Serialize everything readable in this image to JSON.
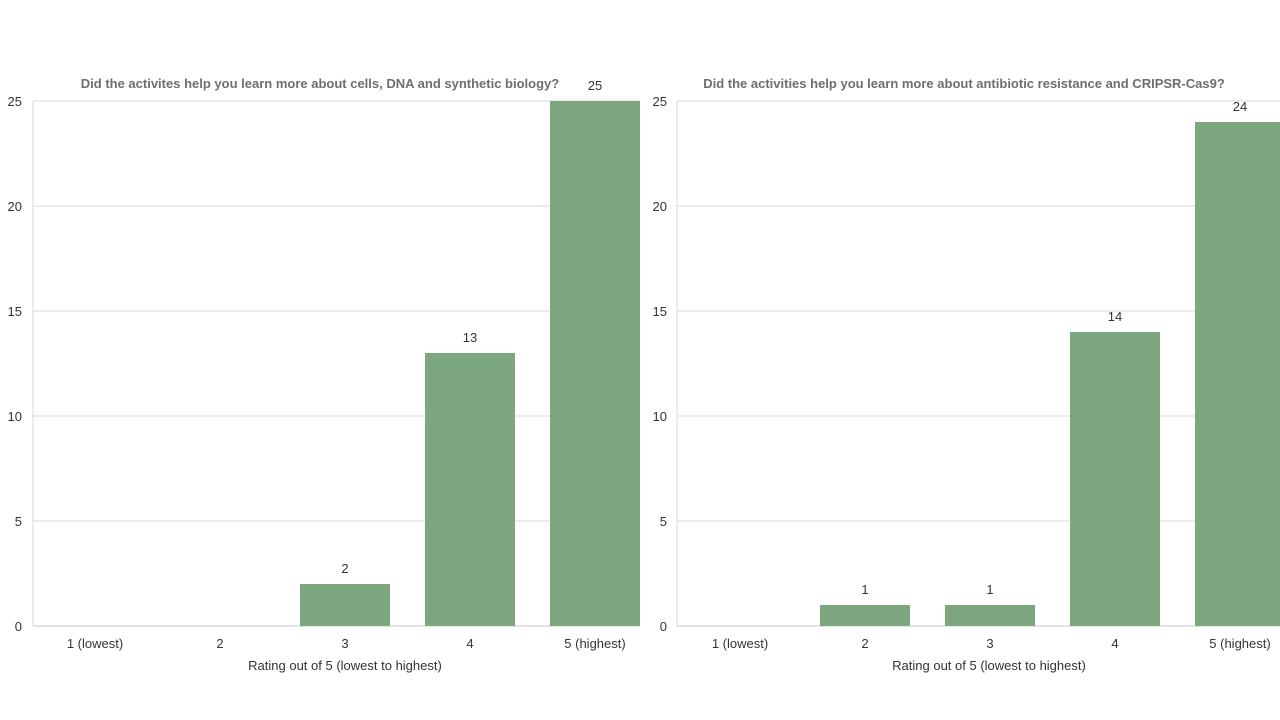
{
  "colors": {
    "bar": "#7da77f"
  },
  "chart_data": [
    {
      "type": "bar",
      "title": "Did the activites help you learn more about cells, DNA and synthetic biology?",
      "xlabel": "Rating out of 5 (lowest to highest)",
      "ylabel": "",
      "ylim": [
        0,
        25
      ],
      "yticks": [
        0,
        5,
        10,
        15,
        20,
        25
      ],
      "categories": [
        "1 (lowest)",
        "2",
        "3",
        "4",
        "5 (highest)"
      ],
      "values": [
        0,
        0,
        2,
        13,
        25
      ]
    },
    {
      "type": "bar",
      "title": "Did the activities help you learn more about antibiotic resistance and CRIPSR-Cas9?",
      "xlabel": "Rating out of 5 (lowest to highest)",
      "ylabel": "",
      "ylim": [
        0,
        25
      ],
      "yticks": [
        0,
        5,
        10,
        15,
        20,
        25
      ],
      "categories": [
        "1 (lowest)",
        "2",
        "3",
        "4",
        "5 (highest)"
      ],
      "values": [
        0,
        1,
        1,
        14,
        24
      ]
    }
  ]
}
